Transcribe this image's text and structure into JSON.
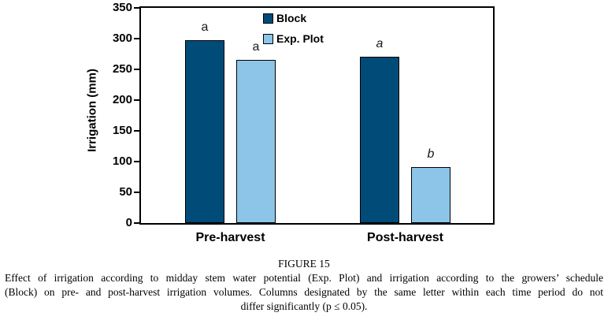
{
  "figure": {
    "label": "FIGURE 15",
    "caption_lines": [
      "Effect of irrigation according to midday stem water potential (Exp. Plot) and irrigation according to the growers’ schedule",
      "(Block) on pre- and post-harvest irrigation volumes. Columns designated by the same letter within each time period do not",
      "differ significantly (p ≤ 0.05)."
    ]
  },
  "chart_data": {
    "type": "bar",
    "title": "",
    "xlabel": "",
    "ylabel": "Irrigation (mm)",
    "ylim": [
      0,
      350
    ],
    "ytick_interval": 50,
    "yticks": [
      350,
      300,
      250,
      200,
      150,
      100,
      50,
      0
    ],
    "categories": [
      "Pre-harvest",
      "Post-harvest"
    ],
    "series": [
      {
        "name": "Block",
        "color": "#004B78",
        "values": [
          297,
          271
        ],
        "letters": [
          {
            "text": "a",
            "italic": false
          },
          {
            "text": "a",
            "italic": true
          }
        ]
      },
      {
        "name": "Exp. Plot",
        "color": "#8CC5E8",
        "values": [
          265,
          91
        ],
        "letters": [
          {
            "text": "a",
            "italic": false
          },
          {
            "text": "b",
            "italic": true
          }
        ]
      }
    ],
    "legend_position": "top-center-inside",
    "grid": false,
    "bar_border_color": "#000000",
    "axis_color": "#000000",
    "background_color": "#FFFFFF"
  }
}
